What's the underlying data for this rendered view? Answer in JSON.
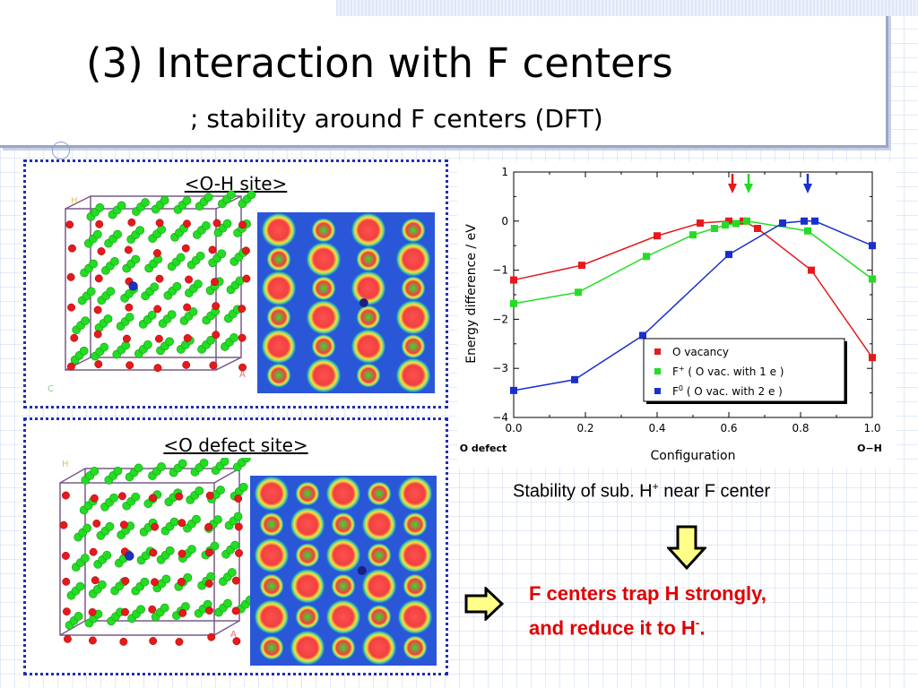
{
  "header": {
    "title": "(3) Interaction with F centers",
    "subtitle": "; stability around F centers (DFT)"
  },
  "panels": {
    "oh_site_label": "<O-H site>",
    "o_defect_label": "<O defect site>",
    "lattice_corner_labels": [
      "H",
      "C",
      "A"
    ]
  },
  "caption": {
    "text_before": "Stability of sub. H",
    "sup": "+",
    "text_after": " near F center"
  },
  "conclusion": {
    "line1": "F centers trap H strongly,",
    "line2_before": "and reduce it to H",
    "line2_sup": "-",
    "line2_after": "."
  },
  "colors": {
    "o_vacancy": "#e41a1c",
    "f_plus": "#22dd22",
    "f_zero": "#1a2fd0",
    "panel_border": "#1f2fb0",
    "conclusion_text": "#e00000",
    "arrow_fill": "#ffff88"
  },
  "chart_data": {
    "type": "line",
    "title": "",
    "xlabel": "Configuration",
    "ylabel": "Energy difference / eV",
    "xlim": [
      0.0,
      1.0
    ],
    "ylim": [
      -4,
      1
    ],
    "xticks": [
      "0.0",
      "0.2",
      "0.4",
      "0.6",
      "0.8",
      "1.0"
    ],
    "yticks": [
      "1",
      "0",
      "−1",
      "−2",
      "−3",
      "−4"
    ],
    "x_end_labels": [
      "O defect",
      "O−H"
    ],
    "legend_position": "bottom-right",
    "series": [
      {
        "name": "O vacancy",
        "color": "#e41a1c",
        "points": [
          [
            0.0,
            -1.2
          ],
          [
            0.19,
            -0.9
          ],
          [
            0.4,
            -0.3
          ],
          [
            0.52,
            -0.04
          ],
          [
            0.6,
            0.0
          ],
          [
            0.64,
            0.0
          ],
          [
            0.68,
            -0.15
          ],
          [
            0.83,
            -1.0
          ],
          [
            1.0,
            -2.78
          ]
        ]
      },
      {
        "name": "F+ ( O vac. with 1 e )",
        "name_base": "F",
        "name_sup": "+",
        "name_rest": "( O vac. with 1 e )",
        "color": "#22dd22",
        "points": [
          [
            0.0,
            -1.68
          ],
          [
            0.18,
            -1.45
          ],
          [
            0.37,
            -0.72
          ],
          [
            0.5,
            -0.28
          ],
          [
            0.56,
            -0.15
          ],
          [
            0.59,
            -0.08
          ],
          [
            0.62,
            -0.05
          ],
          [
            0.65,
            0.0
          ],
          [
            0.82,
            -0.2
          ],
          [
            1.0,
            -1.18
          ]
        ]
      },
      {
        "name": "F0 ( O vac. with 2 e )",
        "name_base": "F",
        "name_sup": "0",
        "name_rest": "( O vac. with 2 e )",
        "color": "#1a2fd0",
        "points": [
          [
            0.0,
            -3.45
          ],
          [
            0.17,
            -3.23
          ],
          [
            0.36,
            -2.33
          ],
          [
            0.6,
            -0.68
          ],
          [
            0.75,
            -0.04
          ],
          [
            0.81,
            0.0
          ],
          [
            0.84,
            0.0
          ],
          [
            1.0,
            -0.5
          ]
        ]
      }
    ],
    "markers": [
      {
        "x": 0.61,
        "color": "#e41a1c"
      },
      {
        "x": 0.655,
        "color": "#22dd22"
      },
      {
        "x": 0.82,
        "color": "#1a2fd0"
      }
    ]
  }
}
